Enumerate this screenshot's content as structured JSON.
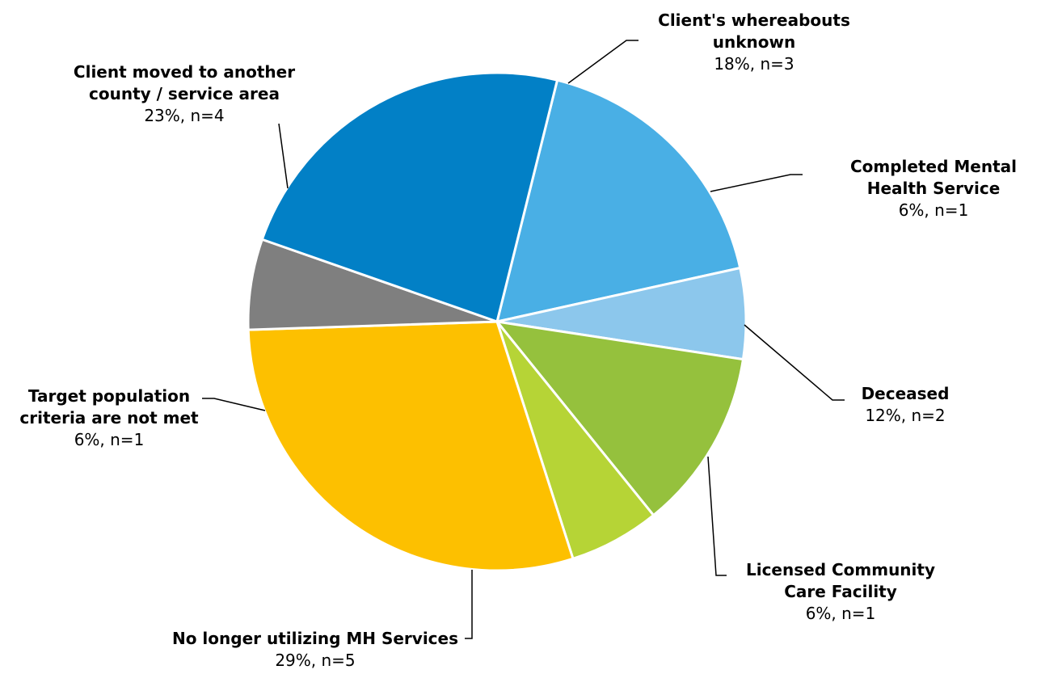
{
  "chart_data": {
    "type": "pie",
    "title": "",
    "slices": [
      {
        "name_lines": [
          "Client's whereabouts",
          "unknown"
        ],
        "value_label": "18%, n=3",
        "percent": 18,
        "n": 3,
        "color": "#49AFE5"
      },
      {
        "name_lines": [
          "Completed Mental",
          "Health Service"
        ],
        "value_label": "6%, n=1",
        "percent": 6,
        "n": 1,
        "color": "#8CC7EC"
      },
      {
        "name_lines": [
          "Deceased"
        ],
        "value_label": "12%, n=2",
        "percent": 12,
        "n": 2,
        "color": "#95C13D"
      },
      {
        "name_lines": [
          "Licensed Community",
          "Care Facility"
        ],
        "value_label": "6%, n=1",
        "percent": 6,
        "n": 1,
        "color": "#B6D436"
      },
      {
        "name_lines": [
          "No longer utilizing MH Services"
        ],
        "value_label": "29%, n=5",
        "percent": 29,
        "n": 5,
        "color": "#FDC000"
      },
      {
        "name_lines": [
          "Target population",
          "criteria are not met"
        ],
        "value_label": "6%, n=1",
        "percent": 6,
        "n": 1,
        "color": "#7F7F7F"
      },
      {
        "name_lines": [
          "Client moved to another",
          "county / service area"
        ],
        "value_label": "23%, n=4",
        "percent": 23,
        "n": 4,
        "color": "#0280C6"
      }
    ],
    "legend": "none"
  }
}
